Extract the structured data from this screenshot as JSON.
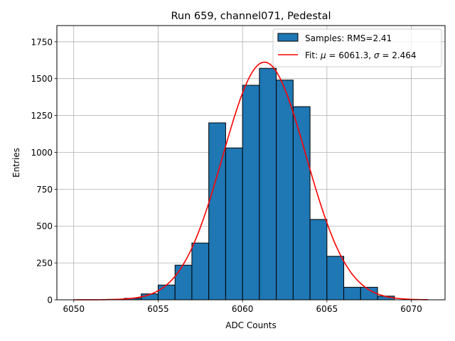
{
  "chart_data": {
    "type": "bar",
    "title": "Run 659, channel071, Pedestal",
    "xlabel": "ADC Counts",
    "ylabel": "Entries",
    "xlim": [
      6049.0,
      6072.0
    ],
    "ylim": [
      0,
      1860
    ],
    "xticks": [
      6050,
      6055,
      6060,
      6065,
      6070
    ],
    "yticks": [
      0,
      250,
      500,
      750,
      1000,
      1250,
      1500,
      1750
    ],
    "grid": true,
    "legend_position": "top-right",
    "histogram": {
      "name": "Samples: RMS=2.41",
      "bin_edges": [
        6052,
        6053,
        6054,
        6055,
        6056,
        6057,
        6058,
        6059,
        6060,
        6061,
        6062,
        6063,
        6064,
        6065,
        6066,
        6067,
        6068,
        6069
      ],
      "values": [
        3,
        10,
        40,
        100,
        235,
        385,
        1200,
        1030,
        1455,
        1570,
        1490,
        1310,
        545,
        295,
        85,
        85,
        25
      ],
      "color": "#1f77b4",
      "edgecolor": "#000000"
    },
    "fit": {
      "name": "Fit: $\\mu$ = 6061.3, $\\sigma$ = 2.464",
      "label_prefix": "Fit: ",
      "mu_symbol": "μ",
      "mu_value": "6061.3",
      "sigma_symbol": "σ",
      "sigma_value": "2.464",
      "mu": 6061.3,
      "sigma": 2.464,
      "amplitude": 1612,
      "x_range": [
        6050,
        6071
      ],
      "color": "#ff0000"
    }
  }
}
